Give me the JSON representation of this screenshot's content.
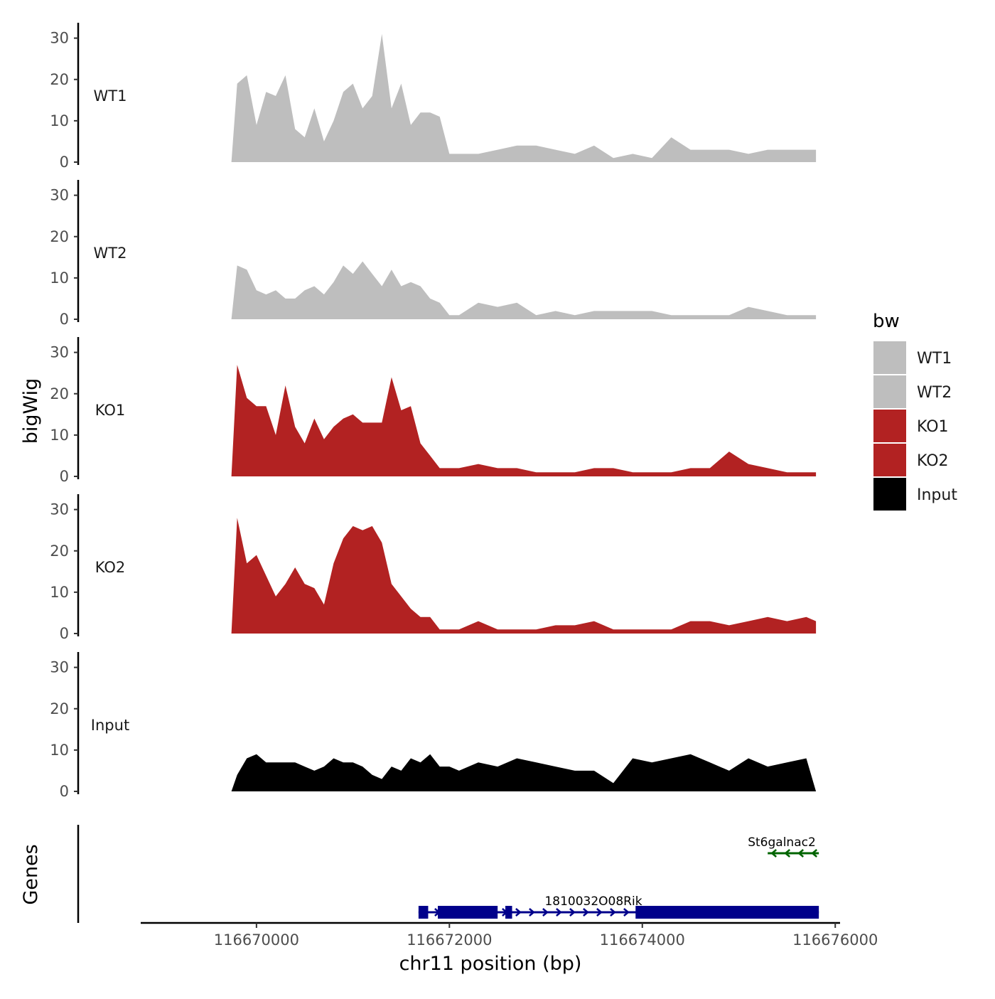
{
  "chart_data": {
    "type": "area",
    "ylabel": "bigWig",
    "xlabel": "chr11 position (bp)",
    "ylim": [
      0,
      32
    ],
    "y_ticks": [
      "0",
      "10",
      "20",
      "30"
    ],
    "xlim": [
      116668800,
      116676050
    ],
    "x_ticks": [
      "116670000",
      "116672000",
      "116674000",
      "116676000"
    ],
    "legend": {
      "title": "bw",
      "position": "right",
      "items": [
        {
          "label": "WT1",
          "color": "#bebebe"
        },
        {
          "label": "WT2",
          "color": "#bebebe"
        },
        {
          "label": "KO1",
          "color": "#b22222"
        },
        {
          "label": "KO2",
          "color": "#b22222"
        },
        {
          "label": "Input",
          "color": "#000000"
        }
      ]
    },
    "tracks": [
      {
        "name": "WT1",
        "color": "#bebebe",
        "x": [
          116669740,
          116669800,
          116669900,
          116670000,
          116670100,
          116670200,
          116670300,
          116670400,
          116670500,
          116670600,
          116670700,
          116670800,
          116670900,
          116671000,
          116671100,
          116671200,
          116671300,
          116671400,
          116671500,
          116671600,
          116671700,
          116671800,
          116671900,
          116672000,
          116672100,
          116672300,
          116672500,
          116672700,
          116672900,
          116673100,
          116673300,
          116673500,
          116673700,
          116673900,
          116674100,
          116674300,
          116674500,
          116674700,
          116674900,
          116675100,
          116675300,
          116675500,
          116675700,
          116675800
        ],
        "values": [
          0,
          19,
          21,
          9,
          17,
          16,
          21,
          8,
          6,
          13,
          5,
          10,
          17,
          19,
          13,
          16,
          31,
          13,
          19,
          9,
          12,
          12,
          11,
          2,
          2,
          2,
          3,
          4,
          4,
          3,
          2,
          4,
          1,
          2,
          1,
          6,
          3,
          3,
          3,
          2,
          3,
          3,
          3,
          3
        ]
      },
      {
        "name": "WT2",
        "color": "#bebebe",
        "x": [
          116669740,
          116669800,
          116669900,
          116670000,
          116670100,
          116670200,
          116670300,
          116670400,
          116670500,
          116670600,
          116670700,
          116670800,
          116670900,
          116671000,
          116671100,
          116671200,
          116671300,
          116671400,
          116671500,
          116671600,
          116671700,
          116671800,
          116671900,
          116672000,
          116672100,
          116672300,
          116672500,
          116672700,
          116672900,
          116673100,
          116673300,
          116673500,
          116673700,
          116673900,
          116674100,
          116674300,
          116674500,
          116674700,
          116674900,
          116675100,
          116675300,
          116675500,
          116675700,
          116675800
        ],
        "values": [
          0,
          13,
          12,
          7,
          6,
          7,
          5,
          5,
          7,
          8,
          6,
          9,
          13,
          11,
          14,
          11,
          8,
          12,
          8,
          9,
          8,
          5,
          4,
          1,
          1,
          4,
          3,
          4,
          1,
          2,
          1,
          2,
          2,
          2,
          2,
          1,
          1,
          1,
          1,
          3,
          2,
          1,
          1,
          1
        ]
      },
      {
        "name": "KO1",
        "color": "#b22222",
        "x": [
          116669740,
          116669800,
          116669900,
          116670000,
          116670100,
          116670200,
          116670300,
          116670400,
          116670500,
          116670600,
          116670700,
          116670800,
          116670900,
          116671000,
          116671100,
          116671200,
          116671300,
          116671400,
          116671500,
          116671600,
          116671700,
          116671800,
          116671900,
          116672000,
          116672100,
          116672300,
          116672500,
          116672700,
          116672900,
          116673100,
          116673300,
          116673500,
          116673700,
          116673900,
          116674100,
          116674300,
          116674500,
          116674700,
          116674900,
          116675100,
          116675300,
          116675500,
          116675700,
          116675800
        ],
        "values": [
          0,
          27,
          19,
          17,
          17,
          10,
          22,
          12,
          8,
          14,
          9,
          12,
          14,
          15,
          13,
          13,
          13,
          24,
          16,
          17,
          8,
          5,
          2,
          2,
          2,
          3,
          2,
          2,
          1,
          1,
          1,
          2,
          2,
          1,
          1,
          1,
          2,
          2,
          6,
          3,
          2,
          1,
          1,
          1
        ]
      },
      {
        "name": "KO2",
        "color": "#b22222",
        "x": [
          116669740,
          116669800,
          116669900,
          116670000,
          116670100,
          116670200,
          116670300,
          116670400,
          116670500,
          116670600,
          116670700,
          116670800,
          116670900,
          116671000,
          116671100,
          116671200,
          116671300,
          116671400,
          116671500,
          116671600,
          116671700,
          116671800,
          116671900,
          116672000,
          116672100,
          116672300,
          116672500,
          116672700,
          116672900,
          116673100,
          116673300,
          116673500,
          116673700,
          116673900,
          116674100,
          116674300,
          116674500,
          116674700,
          116674900,
          116675100,
          116675300,
          116675500,
          116675700,
          116675800
        ],
        "values": [
          0,
          28,
          17,
          19,
          14,
          9,
          12,
          16,
          12,
          11,
          7,
          17,
          23,
          26,
          25,
          26,
          22,
          12,
          9,
          6,
          4,
          4,
          1,
          1,
          1,
          3,
          1,
          1,
          1,
          2,
          2,
          3,
          1,
          1,
          1,
          1,
          3,
          3,
          2,
          3,
          4,
          3,
          4,
          3
        ]
      },
      {
        "name": "Input",
        "color": "#000000",
        "x": [
          116669740,
          116669800,
          116669900,
          116670000,
          116670100,
          116670200,
          116670300,
          116670400,
          116670500,
          116670600,
          116670700,
          116670800,
          116670900,
          116671000,
          116671100,
          116671200,
          116671300,
          116671400,
          116671500,
          116671600,
          116671700,
          116671800,
          116671900,
          116672000,
          116672100,
          116672300,
          116672500,
          116672700,
          116672900,
          116673100,
          116673300,
          116673500,
          116673700,
          116673900,
          116674100,
          116674300,
          116674500,
          116674700,
          116674900,
          116675100,
          116675300,
          116675500,
          116675700,
          116675800
        ],
        "values": [
          0,
          4,
          8,
          9,
          7,
          7,
          7,
          7,
          6,
          5,
          6,
          8,
          7,
          7,
          6,
          4,
          3,
          6,
          5,
          8,
          7,
          9,
          6,
          6,
          5,
          7,
          6,
          8,
          7,
          6,
          5,
          5,
          2,
          8,
          7,
          8,
          9,
          7,
          5,
          8,
          6,
          7,
          8,
          0
        ]
      }
    ],
    "genes": [
      {
        "name": "1810032O08Rik",
        "color": "#00008b",
        "start": 116671680,
        "end": 116675830,
        "strand": "+",
        "exons": [
          [
            116671680,
            116671780
          ],
          [
            116671880,
            116672500
          ],
          [
            116672580,
            116672650
          ],
          [
            116673930,
            116675830
          ]
        ]
      },
      {
        "name": "St6galnac2",
        "color": "#006400",
        "start": 116675300,
        "end": 116675830,
        "strand": "-",
        "exons": []
      }
    ]
  }
}
